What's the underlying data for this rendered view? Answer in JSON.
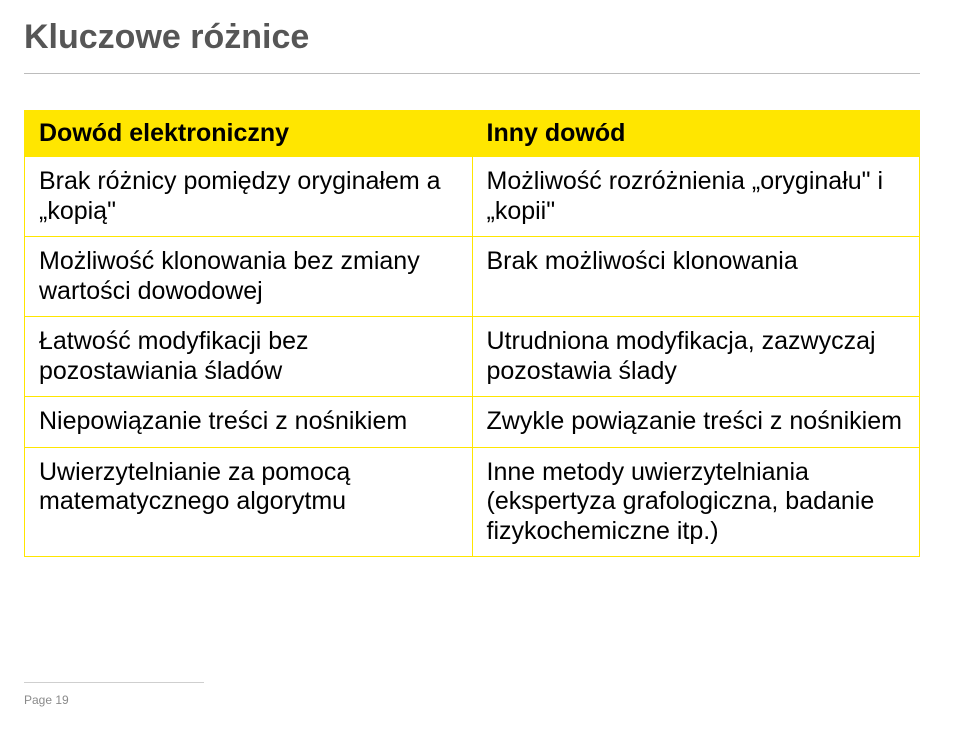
{
  "title": "Kluczowe różnice",
  "table": {
    "header": {
      "left": "Dowód elektroniczny",
      "right": "Inny dowód"
    },
    "rows": [
      {
        "left": "Brak różnicy pomiędzy oryginałem a „kopią\"",
        "right": "Możliwość rozróżnienia „oryginału\" i „kopii\""
      },
      {
        "left": "Możliwość klonowania bez zmiany wartości dowodowej",
        "right": "Brak możliwości klonowania"
      },
      {
        "left": "Łatwość modyfikacji bez pozostawiania śladów",
        "right": "Utrudniona modyfikacja, zazwyczaj pozostawia ślady"
      },
      {
        "left": "Niepowiązanie treści z nośnikiem",
        "right": "Zwykle powiązanie treści z nośnikiem"
      },
      {
        "left": "Uwierzytelnianie za pomocą matematycznego algorytmu",
        "right": "Inne metody uwierzytelniania (ekspertyza grafologiczna, badanie fizykochemiczne itp.)"
      }
    ]
  },
  "footer": "Page 19",
  "colors": {
    "accent": "#ffe600",
    "title_text": "#565656",
    "body_text": "#000000",
    "rule": "#bcbcbc",
    "footer_text": "#8a8a8a",
    "background": "#ffffff"
  },
  "typography": {
    "title_fontsize": 34,
    "cell_fontsize": 25,
    "footer_fontsize": 12,
    "title_weight": "bold",
    "header_weight": "bold"
  }
}
